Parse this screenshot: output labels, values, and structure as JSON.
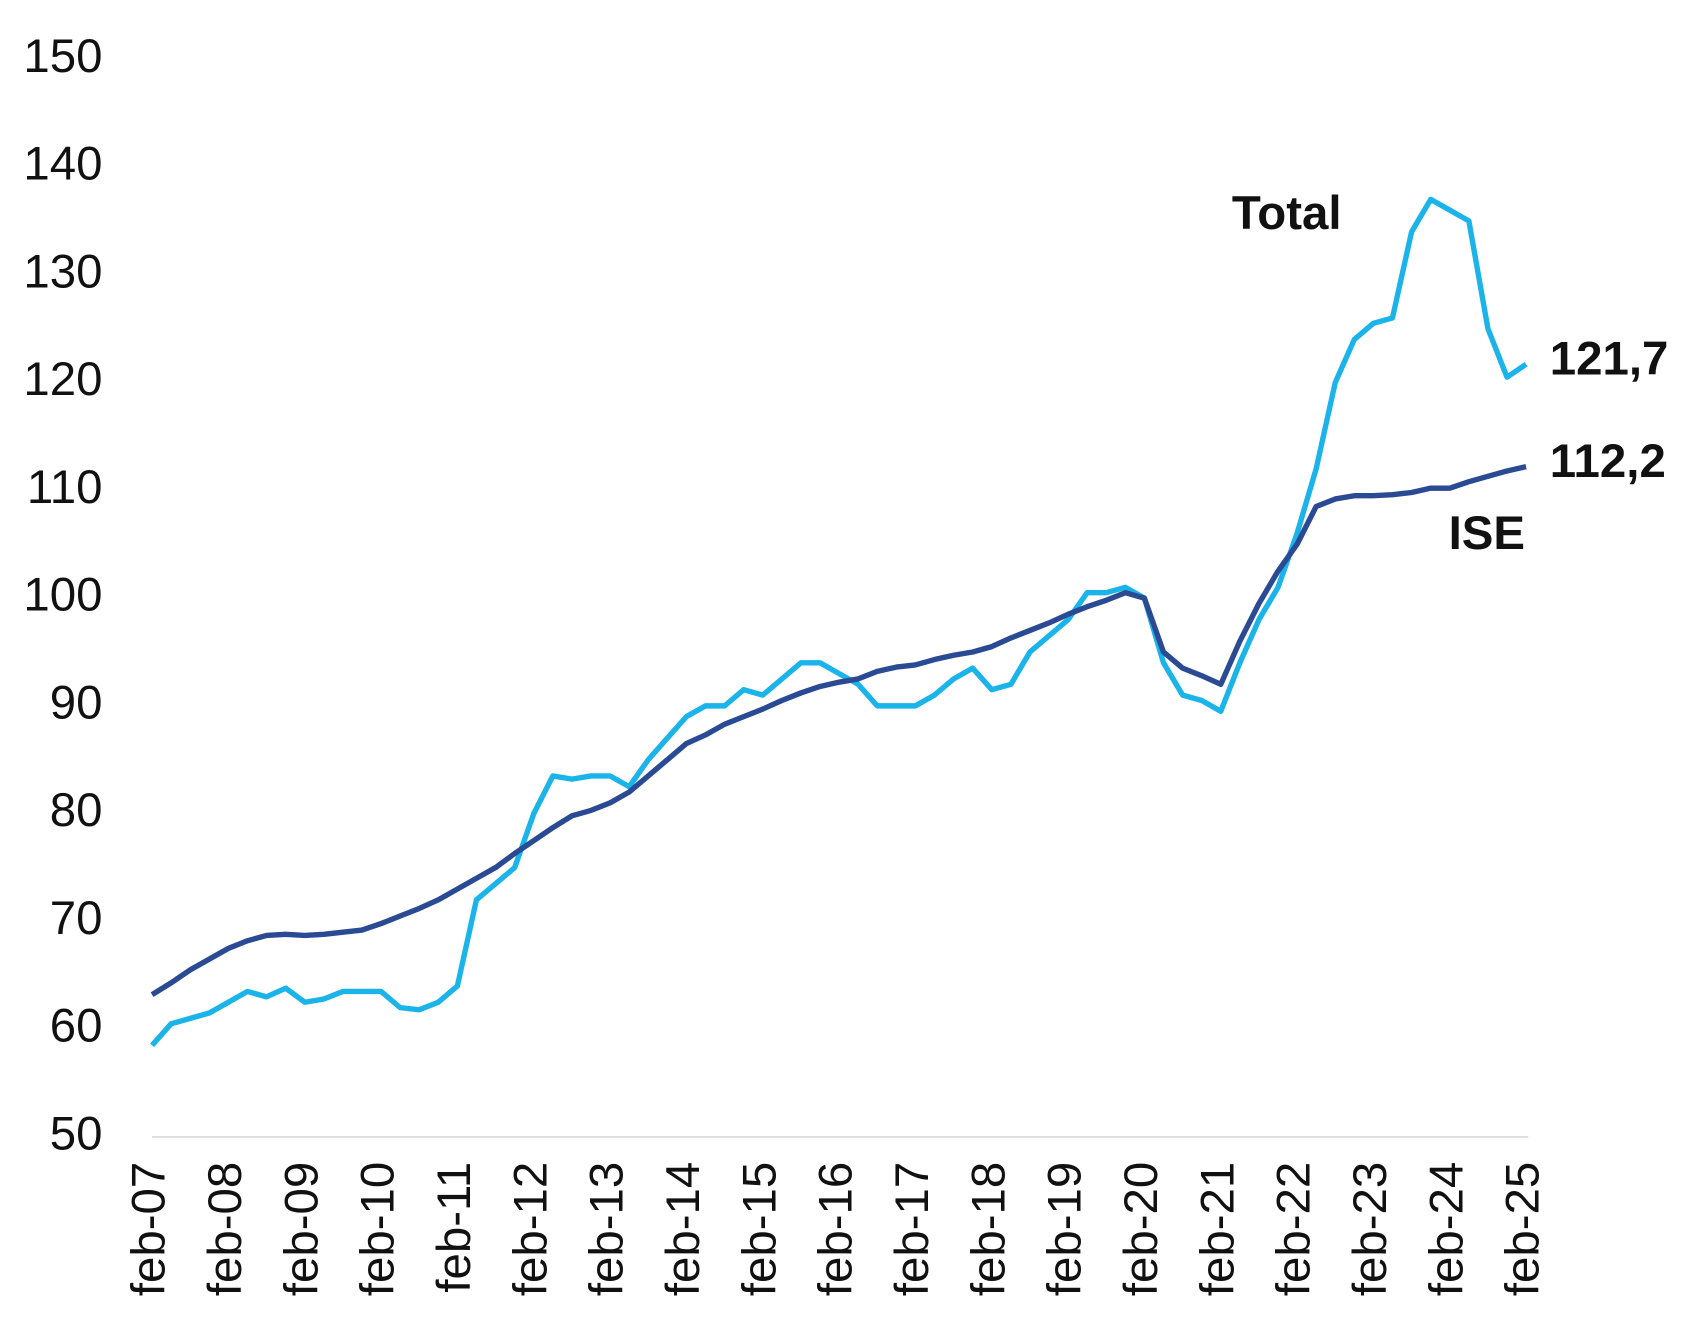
{
  "chart_data": {
    "type": "line",
    "categories": [
      "feb-07",
      null,
      null,
      null,
      "feb-08",
      null,
      null,
      null,
      "feb-09",
      null,
      null,
      null,
      "feb-10",
      null,
      null,
      null,
      "feb-11",
      null,
      null,
      null,
      "feb-12",
      null,
      null,
      null,
      "feb-13",
      null,
      null,
      null,
      "feb-14",
      null,
      null,
      null,
      "feb-15",
      null,
      null,
      null,
      "feb-16",
      null,
      null,
      null,
      "feb-17",
      null,
      null,
      null,
      "feb-18",
      null,
      null,
      null,
      "feb-19",
      null,
      null,
      null,
      "feb-20",
      null,
      null,
      null,
      "feb-21",
      null,
      null,
      null,
      "feb-22",
      null,
      null,
      null,
      "feb-23",
      null,
      null,
      null,
      "feb-24",
      null,
      null,
      null,
      "feb-25"
    ],
    "series": [
      {
        "name": "Total",
        "color": "#1ab4ea",
        "value_label": "121,7",
        "values": [
          58.5,
          60.5,
          61,
          61.5,
          62.5,
          63.5,
          63,
          63.8,
          62.5,
          62.8,
          63.5,
          63.5,
          63.5,
          62,
          61.8,
          62.5,
          64,
          72,
          73.5,
          75,
          80,
          83.5,
          83.2,
          83.5,
          83.5,
          82.5,
          85,
          87,
          89,
          90,
          90,
          91.5,
          91,
          92.5,
          94,
          94,
          93,
          92,
          90,
          90,
          90,
          91,
          92.5,
          93.5,
          91.5,
          92,
          95,
          96.5,
          98,
          100.5,
          100.5,
          101,
          100,
          94,
          91,
          90.5,
          89.5,
          94,
          98,
          101,
          106,
          112,
          120,
          124,
          125.5,
          126,
          134,
          137,
          136,
          135,
          125,
          120.5,
          121.7
        ]
      },
      {
        "name": "ISE",
        "color": "#2a4a94",
        "value_label": "112,2",
        "values": [
          63.2,
          64.3,
          65.5,
          66.5,
          67.5,
          68.2,
          68.7,
          68.8,
          68.7,
          68.8,
          69,
          69.2,
          69.8,
          70.5,
          71.2,
          72,
          73,
          74,
          75,
          76.3,
          77.5,
          78.7,
          79.8,
          80.3,
          81,
          82,
          83.5,
          85,
          86.5,
          87.3,
          88.3,
          89,
          89.7,
          90.5,
          91.2,
          91.8,
          92.2,
          92.5,
          93.2,
          93.6,
          93.8,
          94.3,
          94.7,
          95,
          95.5,
          96.3,
          97,
          97.7,
          98.5,
          99.2,
          99.8,
          100.5,
          100,
          95,
          93.5,
          92.8,
          92,
          96,
          99.5,
          102.5,
          105,
          108.5,
          109.2,
          109.5,
          109.5,
          109.6,
          109.8,
          110.2,
          110.2,
          110.8,
          111.3,
          111.8,
          112.2
        ]
      }
    ],
    "ylim": [
      50,
      150
    ],
    "yticks": [
      50,
      60,
      70,
      80,
      90,
      100,
      110,
      120,
      130,
      140,
      150
    ],
    "grid": false
  }
}
